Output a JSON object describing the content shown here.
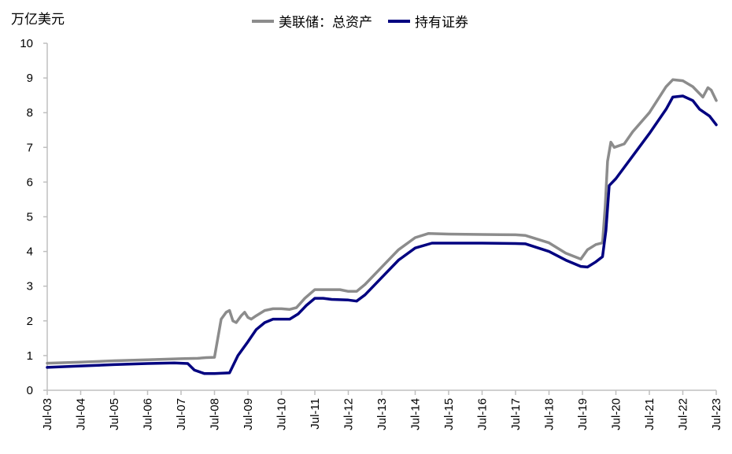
{
  "unit_label": "万亿美元",
  "colors": {
    "total_assets": "#8c8c8c",
    "securities": "#000080",
    "axis": "#bfbfbf"
  },
  "chart_data": {
    "type": "line",
    "title": "",
    "xlabel": "",
    "ylabel": "万亿美元",
    "ylim": [
      0,
      10
    ],
    "yticks": [
      0,
      1,
      2,
      3,
      4,
      5,
      6,
      7,
      8,
      9,
      10
    ],
    "xlim": [
      2003.5,
      2023.5
    ],
    "xticks": [
      {
        "value": 2003.5,
        "label": "Jul-03"
      },
      {
        "value": 2004.5,
        "label": "Jul-04"
      },
      {
        "value": 2005.5,
        "label": "Jul-05"
      },
      {
        "value": 2006.5,
        "label": "Jul-06"
      },
      {
        "value": 2007.5,
        "label": "Jul-07"
      },
      {
        "value": 2008.5,
        "label": "Jul-08"
      },
      {
        "value": 2009.5,
        "label": "Jul-09"
      },
      {
        "value": 2010.5,
        "label": "Jul-10"
      },
      {
        "value": 2011.5,
        "label": "Jul-11"
      },
      {
        "value": 2012.5,
        "label": "Jul-12"
      },
      {
        "value": 2013.5,
        "label": "Jul-13"
      },
      {
        "value": 2014.5,
        "label": "Jul-14"
      },
      {
        "value": 2015.5,
        "label": "Jul-15"
      },
      {
        "value": 2016.5,
        "label": "Jul-16"
      },
      {
        "value": 2017.5,
        "label": "Jul-17"
      },
      {
        "value": 2018.5,
        "label": "Jul-18"
      },
      {
        "value": 2019.5,
        "label": "Jul-19"
      },
      {
        "value": 2020.5,
        "label": "Jul-20"
      },
      {
        "value": 2021.5,
        "label": "Jul-21"
      },
      {
        "value": 2022.5,
        "label": "Jul-22"
      },
      {
        "value": 2023.5,
        "label": "Jul-23"
      }
    ],
    "legend_position": "top-center",
    "series": [
      {
        "name": "美联储：总资产",
        "color": "#8c8c8c",
        "points": [
          [
            2003.5,
            0.78
          ],
          [
            2004.5,
            0.81
          ],
          [
            2005.5,
            0.85
          ],
          [
            2006.5,
            0.88
          ],
          [
            2007.5,
            0.91
          ],
          [
            2008.0,
            0.92
          ],
          [
            2008.25,
            0.94
          ],
          [
            2008.5,
            0.95
          ],
          [
            2008.7,
            2.05
          ],
          [
            2008.85,
            2.25
          ],
          [
            2008.95,
            2.3
          ],
          [
            2009.05,
            2.0
          ],
          [
            2009.15,
            1.95
          ],
          [
            2009.3,
            2.15
          ],
          [
            2009.4,
            2.25
          ],
          [
            2009.5,
            2.1
          ],
          [
            2009.6,
            2.05
          ],
          [
            2009.75,
            2.15
          ],
          [
            2010.0,
            2.3
          ],
          [
            2010.25,
            2.35
          ],
          [
            2010.5,
            2.35
          ],
          [
            2010.75,
            2.33
          ],
          [
            2010.95,
            2.38
          ],
          [
            2011.2,
            2.65
          ],
          [
            2011.5,
            2.9
          ],
          [
            2011.75,
            2.9
          ],
          [
            2012.0,
            2.9
          ],
          [
            2012.25,
            2.9
          ],
          [
            2012.5,
            2.85
          ],
          [
            2012.75,
            2.85
          ],
          [
            2013.0,
            3.05
          ],
          [
            2013.5,
            3.55
          ],
          [
            2014.0,
            4.05
          ],
          [
            2014.5,
            4.4
          ],
          [
            2014.9,
            4.52
          ],
          [
            2015.5,
            4.5
          ],
          [
            2016.5,
            4.49
          ],
          [
            2017.5,
            4.48
          ],
          [
            2017.8,
            4.46
          ],
          [
            2018.5,
            4.25
          ],
          [
            2019.0,
            3.95
          ],
          [
            2019.45,
            3.78
          ],
          [
            2019.65,
            4.05
          ],
          [
            2019.9,
            4.2
          ],
          [
            2020.1,
            4.25
          ],
          [
            2020.18,
            5.3
          ],
          [
            2020.25,
            6.6
          ],
          [
            2020.35,
            7.15
          ],
          [
            2020.45,
            7.0
          ],
          [
            2020.75,
            7.1
          ],
          [
            2021.0,
            7.45
          ],
          [
            2021.5,
            8.0
          ],
          [
            2022.0,
            8.75
          ],
          [
            2022.2,
            8.95
          ],
          [
            2022.5,
            8.92
          ],
          [
            2022.8,
            8.75
          ],
          [
            2023.1,
            8.45
          ],
          [
            2023.25,
            8.72
          ],
          [
            2023.35,
            8.65
          ],
          [
            2023.5,
            8.35
          ]
        ]
      },
      {
        "name": "持有证券",
        "color": "#000080",
        "points": [
          [
            2003.5,
            0.66
          ],
          [
            2004.5,
            0.7
          ],
          [
            2005.5,
            0.74
          ],
          [
            2006.5,
            0.77
          ],
          [
            2007.3,
            0.79
          ],
          [
            2007.7,
            0.77
          ],
          [
            2007.9,
            0.58
          ],
          [
            2008.2,
            0.48
          ],
          [
            2008.5,
            0.48
          ],
          [
            2008.95,
            0.5
          ],
          [
            2009.2,
            1.0
          ],
          [
            2009.5,
            1.4
          ],
          [
            2009.75,
            1.75
          ],
          [
            2010.0,
            1.95
          ],
          [
            2010.25,
            2.05
          ],
          [
            2010.5,
            2.05
          ],
          [
            2010.75,
            2.05
          ],
          [
            2011.0,
            2.2
          ],
          [
            2011.25,
            2.45
          ],
          [
            2011.5,
            2.65
          ],
          [
            2011.75,
            2.65
          ],
          [
            2012.0,
            2.62
          ],
          [
            2012.5,
            2.6
          ],
          [
            2012.75,
            2.57
          ],
          [
            2013.0,
            2.75
          ],
          [
            2013.5,
            3.25
          ],
          [
            2014.0,
            3.75
          ],
          [
            2014.5,
            4.1
          ],
          [
            2015.0,
            4.24
          ],
          [
            2015.5,
            4.24
          ],
          [
            2016.5,
            4.24
          ],
          [
            2017.5,
            4.23
          ],
          [
            2017.8,
            4.22
          ],
          [
            2018.5,
            4.0
          ],
          [
            2019.0,
            3.75
          ],
          [
            2019.45,
            3.57
          ],
          [
            2019.65,
            3.55
          ],
          [
            2019.9,
            3.7
          ],
          [
            2020.1,
            3.85
          ],
          [
            2020.2,
            4.6
          ],
          [
            2020.3,
            5.9
          ],
          [
            2020.5,
            6.1
          ],
          [
            2021.0,
            6.75
          ],
          [
            2021.5,
            7.4
          ],
          [
            2022.0,
            8.1
          ],
          [
            2022.2,
            8.45
          ],
          [
            2022.5,
            8.48
          ],
          [
            2022.8,
            8.35
          ],
          [
            2023.0,
            8.1
          ],
          [
            2023.3,
            7.9
          ],
          [
            2023.5,
            7.65
          ]
        ]
      }
    ]
  }
}
